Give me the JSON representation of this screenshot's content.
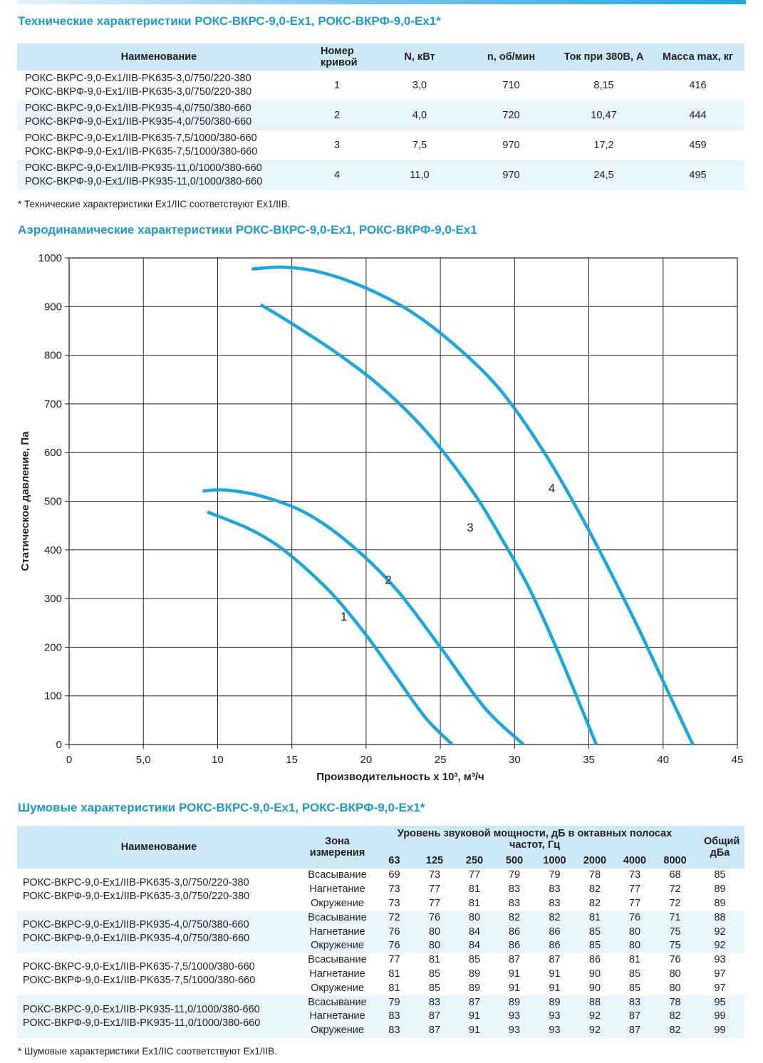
{
  "tech_section": {
    "title": "Технические характеристики РОКС-ВКРС-9,0-Ex1, РОКС-ВКРФ-9,0-Ex1*",
    "headers": [
      "Наименование",
      "Номер кривой",
      "N, кВт",
      "n, об/мин",
      "Ток при 380В, А",
      "Масса max, кг"
    ],
    "rows": [
      {
        "name1": "РОКС-ВКРС-9,0-Ex1/IIB-PK635-3,0/750/220-380",
        "name2": "РОКС-ВКРФ-9,0-Ex1/IIB-PK635-3,0/750/220-380",
        "curve": "1",
        "power": "3,0",
        "rpm": "710",
        "current": "8,15",
        "mass": "416"
      },
      {
        "name1": "РОКС-ВКРС-9,0-Ex1/IIB-PK935-4,0/750/380-660",
        "name2": "РОКС-ВКРФ-9,0-Ex1/IIB-PK935-4,0/750/380-660",
        "curve": "2",
        "power": "4,0",
        "rpm": "720",
        "current": "10,47",
        "mass": "444"
      },
      {
        "name1": "РОКС-ВКРС-9,0-Ex1/IIB-PK635-7,5/1000/380-660",
        "name2": "РОКС-ВКРФ-9,0-Ex1/IIB-PK635-7,5/1000/380-660",
        "curve": "3",
        "power": "7,5",
        "rpm": "970",
        "current": "17,2",
        "mass": "459"
      },
      {
        "name1": "РОКС-ВКРС-9,0-Ex1/IIB-PK935-11,0/1000/380-660",
        "name2": "РОКС-ВКРФ-9,0-Ex1/IIB-PK935-11,0/1000/380-660",
        "curve": "4",
        "power": "11,0",
        "rpm": "970",
        "current": "24,5",
        "mass": "495"
      }
    ],
    "footnote": "* Технические характеристики Ex1/IIC соответствуют Ex1/IIB."
  },
  "aero_section": {
    "title": "Аэродинамические характеристики РОКС-ВКРС-9,0-Ex1, РОКС-ВКРФ-9,0-Ex1"
  },
  "chart_data": {
    "type": "line",
    "title": "",
    "xlabel": "Производительность x 10³, м³/ч",
    "ylabel": "Статическое давление, Па",
    "xlim": [
      0,
      45
    ],
    "ylim": [
      0,
      1000
    ],
    "x_ticks": [
      "0",
      "5,0",
      "10",
      "15",
      "20",
      "25",
      "30",
      "35",
      "40",
      "45"
    ],
    "y_ticks": [
      "0",
      "100",
      "200",
      "300",
      "400",
      "500",
      "600",
      "700",
      "800",
      "900",
      "1000"
    ],
    "grid": true,
    "line_color": "#1aa7e1",
    "series": [
      {
        "name": "1",
        "x": [
          9.3,
          12,
          14,
          16,
          18,
          20,
          22,
          24,
          25.8
        ],
        "y": [
          478,
          445,
          410,
          360,
          300,
          225,
          140,
          55,
          0
        ]
      },
      {
        "name": "2",
        "x": [
          9.0,
          10.5,
          13,
          16,
          19,
          22,
          25,
          28,
          30.6
        ],
        "y": [
          521,
          523,
          510,
          475,
          410,
          320,
          200,
          75,
          0
        ]
      },
      {
        "name": "3",
        "x": [
          12.9,
          15,
          18,
          21,
          24,
          27,
          29,
          31,
          33,
          35.5
        ],
        "y": [
          904,
          865,
          805,
          735,
          645,
          528,
          430,
          320,
          185,
          0
        ]
      },
      {
        "name": "4",
        "x": [
          12.3,
          14.5,
          17,
          20,
          23,
          26,
          29,
          32,
          35,
          38,
          40,
          42
        ],
        "y": [
          977,
          981,
          970,
          938,
          890,
          820,
          730,
          600,
          440,
          260,
          130,
          0
        ]
      }
    ],
    "curve_labels": [
      {
        "text": "1",
        "x": 18.5,
        "y": 255
      },
      {
        "text": "2",
        "x": 21.5,
        "y": 330
      },
      {
        "text": "3",
        "x": 27.0,
        "y": 438
      },
      {
        "text": "4",
        "x": 32.5,
        "y": 518
      }
    ]
  },
  "noise_section": {
    "title": "Шумовые характеристики РОКС-ВКРС-9,0-Ex1, РОКС-ВКРФ-9,0-Ex1*",
    "header_name": "Наименование",
    "header_zone": "Зона измерения",
    "header_level": "Уровень звуковой мощности, дБ в октавных полосах частот, Гц",
    "header_total": "Общий дБа",
    "frequencies": [
      "63",
      "125",
      "250",
      "500",
      "1000",
      "2000",
      "4000",
      "8000"
    ],
    "groups": [
      {
        "name1": "РОКС-ВКРС-9,0-Ex1/IIB-PK635-3,0/750/220-380",
        "name2": "РОКС-ВКРФ-9,0-Ex1/IIB-PK635-3,0/750/220-380",
        "rows": [
          {
            "zone": "Всасывание",
            "v": [
              "69",
              "73",
              "77",
              "79",
              "79",
              "78",
              "73",
              "68"
            ],
            "total": "85"
          },
          {
            "zone": "Нагнетание",
            "v": [
              "73",
              "77",
              "81",
              "83",
              "83",
              "82",
              "77",
              "72"
            ],
            "total": "89"
          },
          {
            "zone": "Окружение",
            "v": [
              "73",
              "77",
              "81",
              "83",
              "83",
              "82",
              "77",
              "72"
            ],
            "total": "89"
          }
        ]
      },
      {
        "name1": "РОКС-ВКРС-9,0-Ex1/IIB-PK935-4,0/750/380-660",
        "name2": "РОКС-ВКРФ-9,0-Ex1/IIB-PK935-4,0/750/380-660",
        "rows": [
          {
            "zone": "Всасывание",
            "v": [
              "72",
              "76",
              "80",
              "82",
              "82",
              "81",
              "76",
              "71"
            ],
            "total": "88"
          },
          {
            "zone": "Нагнетание",
            "v": [
              "76",
              "80",
              "84",
              "86",
              "86",
              "85",
              "80",
              "75"
            ],
            "total": "92"
          },
          {
            "zone": "Окружение",
            "v": [
              "76",
              "80",
              "84",
              "86",
              "86",
              "85",
              "80",
              "75"
            ],
            "total": "92"
          }
        ]
      },
      {
        "name1": "РОКС-ВКРС-9,0-Ex1/IIB-PK635-7,5/1000/380-660",
        "name2": "РОКС-ВКРФ-9,0-Ex1/IIB-PK635-7,5/1000/380-660",
        "rows": [
          {
            "zone": "Всасывание",
            "v": [
              "77",
              "81",
              "85",
              "87",
              "87",
              "86",
              "81",
              "76"
            ],
            "total": "93"
          },
          {
            "zone": "Нагнетание",
            "v": [
              "81",
              "85",
              "89",
              "91",
              "91",
              "90",
              "85",
              "80"
            ],
            "total": "97"
          },
          {
            "zone": "Окружение",
            "v": [
              "81",
              "85",
              "89",
              "91",
              "91",
              "90",
              "85",
              "80"
            ],
            "total": "97"
          }
        ]
      },
      {
        "name1": "РОКС-ВКРС-9,0-Ex1/IIB-PK935-11,0/1000/380-660",
        "name2": "РОКС-ВКРФ-9,0-Ex1/IIB-PK935-11,0/1000/380-660",
        "rows": [
          {
            "zone": "Всасывание",
            "v": [
              "79",
              "83",
              "87",
              "89",
              "89",
              "88",
              "83",
              "78"
            ],
            "total": "95"
          },
          {
            "zone": "Нагнетание",
            "v": [
              "83",
              "87",
              "91",
              "93",
              "93",
              "92",
              "87",
              "82"
            ],
            "total": "99"
          },
          {
            "zone": "Окружение",
            "v": [
              "83",
              "87",
              "91",
              "93",
              "93",
              "92",
              "87",
              "82"
            ],
            "total": "99"
          }
        ]
      }
    ],
    "footnote": "* Шумовые характеристики Ex1/IIC соответствуют Ex1/IIB."
  }
}
